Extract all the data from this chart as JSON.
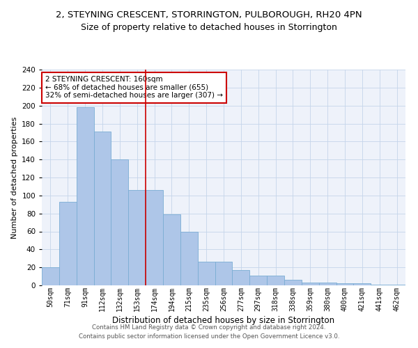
{
  "title": "2, STEYNING CRESCENT, STORRINGTON, PULBOROUGH, RH20 4PN",
  "subtitle": "Size of property relative to detached houses in Storrington",
  "xlabel": "Distribution of detached houses by size in Storrington",
  "ylabel": "Number of detached properties",
  "bar_labels": [
    "50sqm",
    "71sqm",
    "91sqm",
    "112sqm",
    "132sqm",
    "153sqm",
    "174sqm",
    "194sqm",
    "215sqm",
    "235sqm",
    "256sqm",
    "277sqm",
    "297sqm",
    "318sqm",
    "338sqm",
    "359sqm",
    "380sqm",
    "400sqm",
    "421sqm",
    "441sqm",
    "462sqm"
  ],
  "bar_values": [
    20,
    93,
    198,
    171,
    140,
    106,
    106,
    79,
    60,
    26,
    26,
    17,
    11,
    11,
    6,
    3,
    3,
    2,
    2,
    1,
    1
  ],
  "bar_color": "#aec6e8",
  "bar_edge_color": "#7aadd4",
  "property_label": "2 STEYNING CRESCENT: 160sqm",
  "annotation_line1": "← 68% of detached houses are smaller (655)",
  "annotation_line2": "32% of semi-detached houses are larger (307) →",
  "vline_x_index": 5.5,
  "vline_color": "#cc0000",
  "annotation_box_color": "#cc0000",
  "ylim": [
    0,
    240
  ],
  "yticks": [
    0,
    20,
    40,
    60,
    80,
    100,
    120,
    140,
    160,
    180,
    200,
    220,
    240
  ],
  "footer_line1": "Contains HM Land Registry data © Crown copyright and database right 2024.",
  "footer_line2": "Contains public sector information licensed under the Open Government Licence v3.0.",
  "title_fontsize": 9.5,
  "subtitle_fontsize": 9,
  "ylabel_fontsize": 8,
  "xlabel_fontsize": 8.5,
  "bg_color": "#eef2fa",
  "grid_color": "#c5d5ea"
}
